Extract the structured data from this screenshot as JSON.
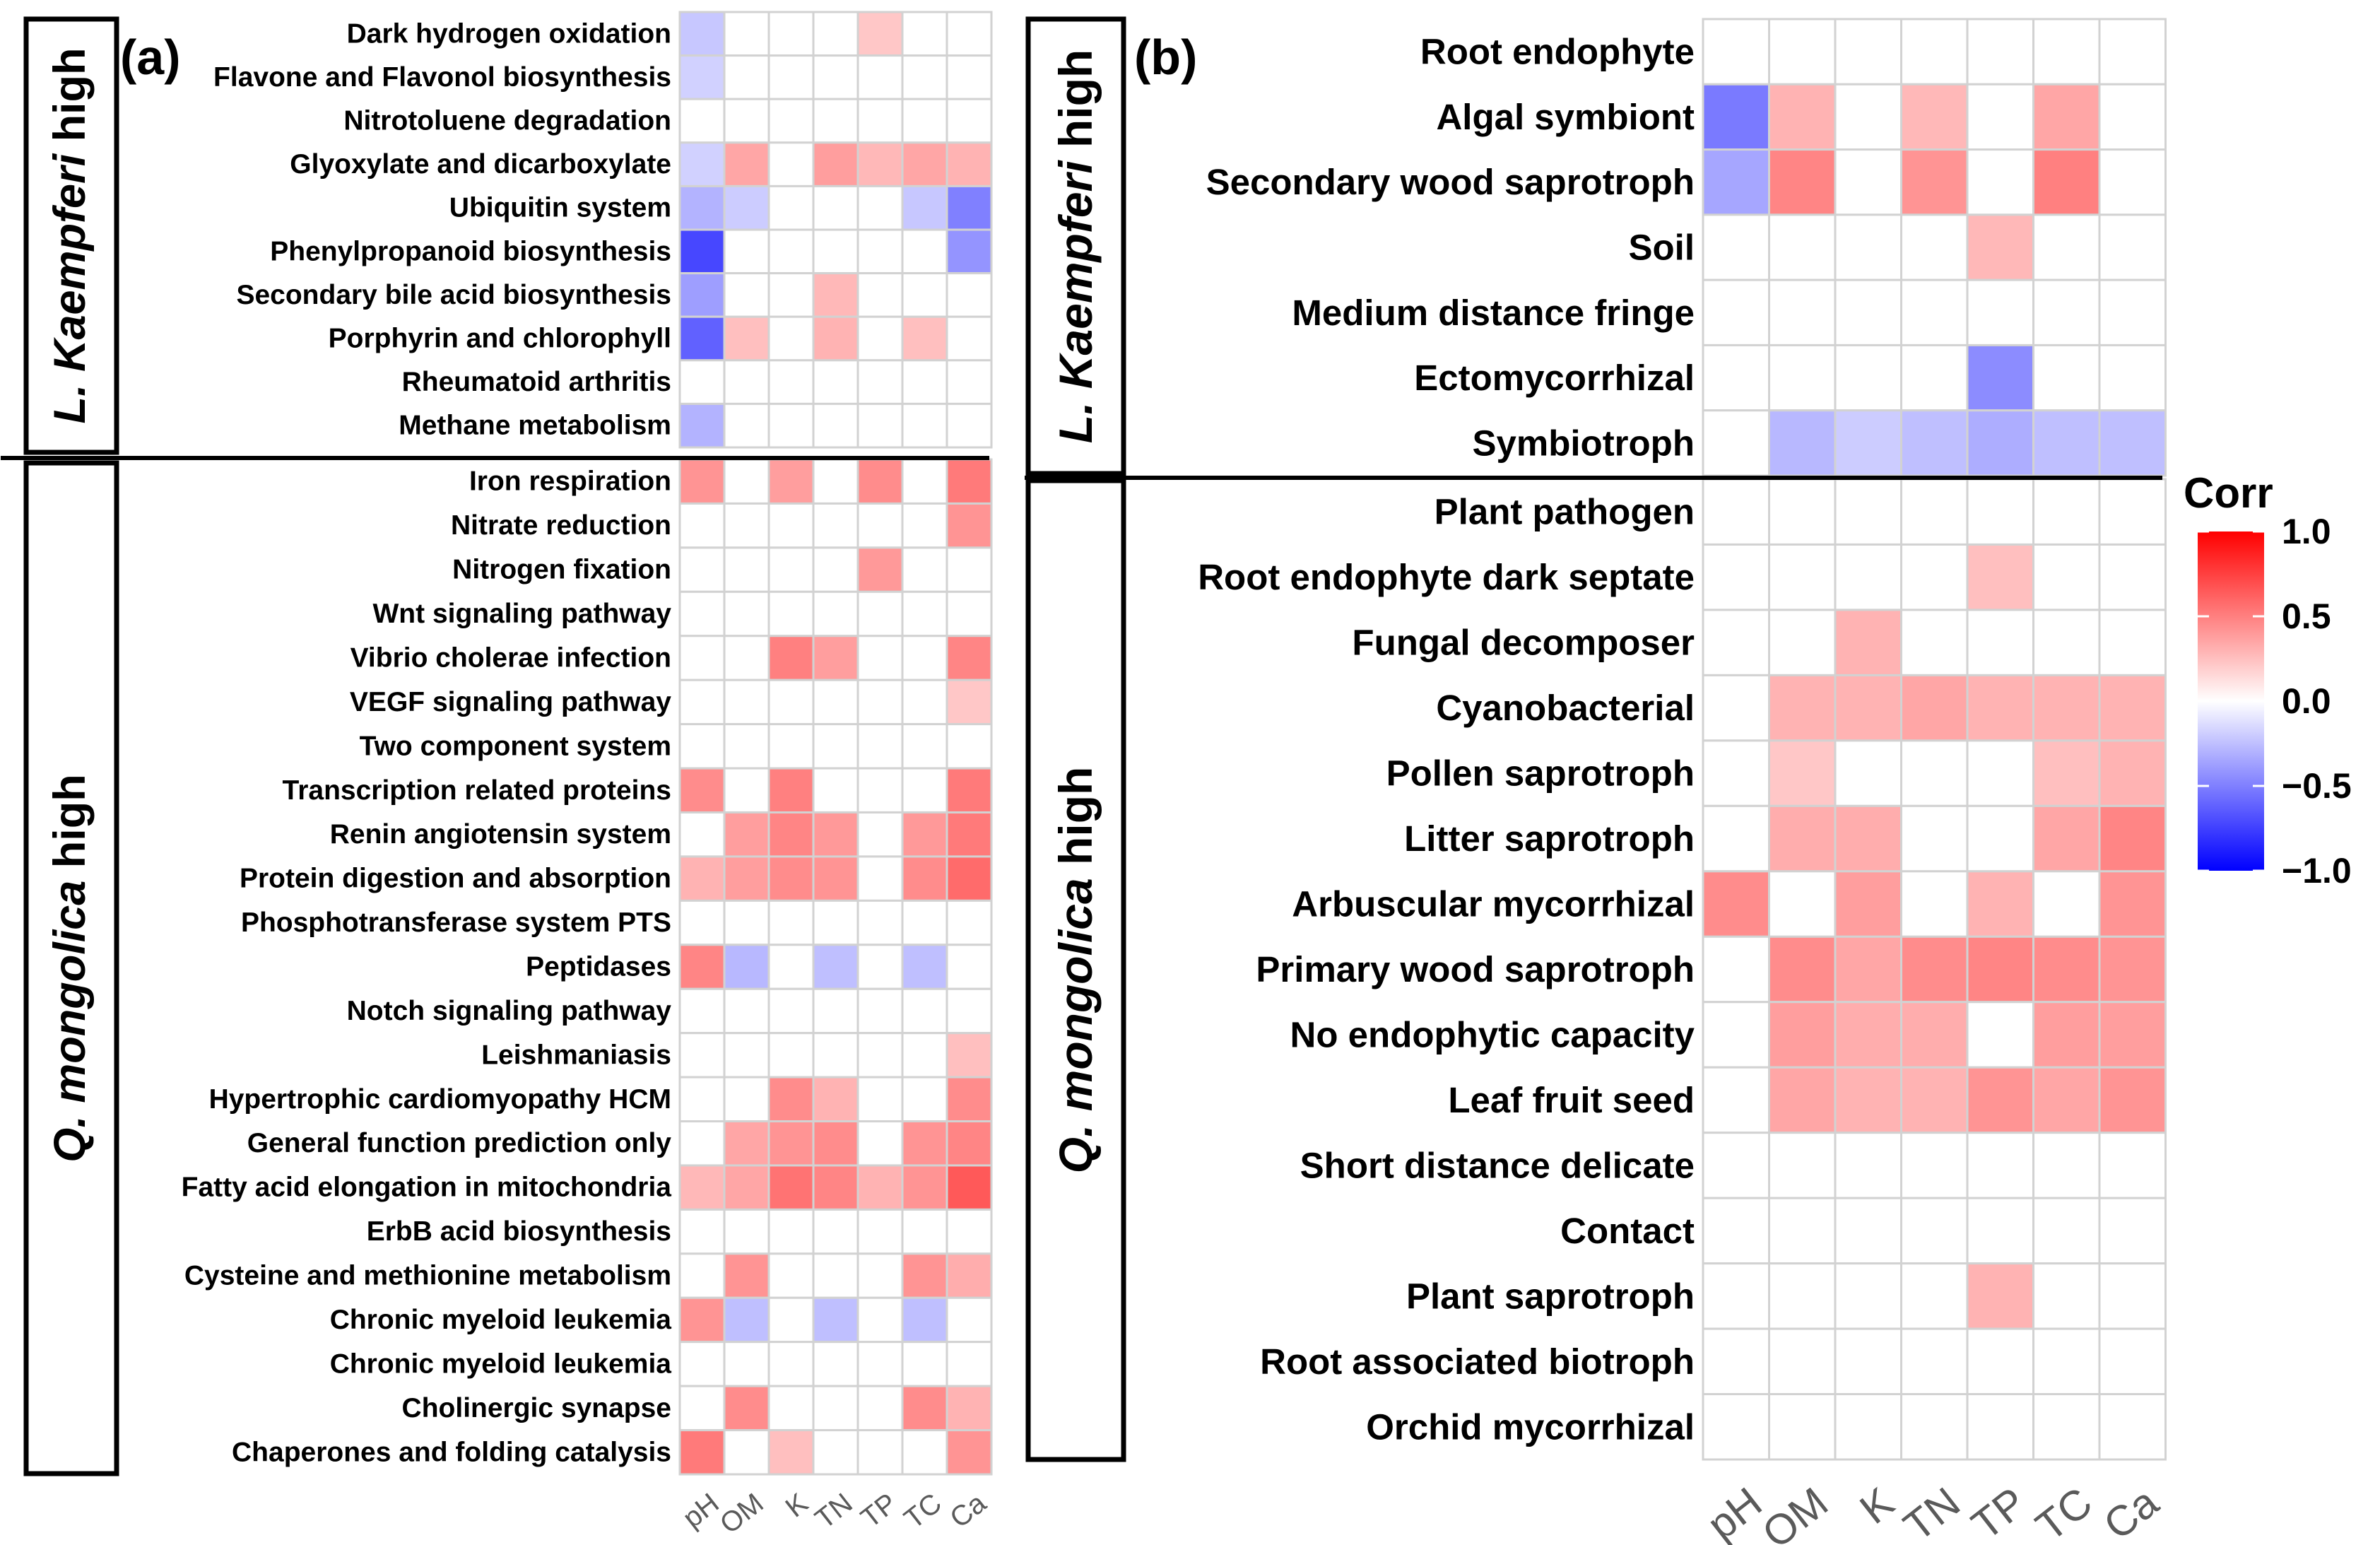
{
  "legend": {
    "title": "Corr",
    "ticks": [
      {
        "value": 1.0,
        "label": "1.0"
      },
      {
        "value": 0.5,
        "label": "0.5"
      },
      {
        "value": 0.0,
        "label": "0.0"
      },
      {
        "value": -0.5,
        "label": "−0.5"
      },
      {
        "value": -1.0,
        "label": "−1.0"
      }
    ],
    "colors": {
      "high": "#ff0000",
      "mid": "#ffffff",
      "low": "#0000ff",
      "grid": "#d2d2d2"
    }
  },
  "chart_data": [
    {
      "type": "heatmap",
      "panel": "(a)",
      "columns": [
        "pH",
        "OM",
        "K",
        "TN",
        "TP",
        "TC",
        "Ca"
      ],
      "groups": [
        {
          "label_species": "L. Kaempferi",
          "label_suffix": " high",
          "rows": [
            {
              "label": "Dark hydrogen oxidation",
              "values": [
                -0.22,
                0,
                0,
                0,
                0.22,
                0,
                0
              ]
            },
            {
              "label": "Flavone and Flavonol biosynthesis",
              "values": [
                -0.18,
                0,
                0,
                0,
                0,
                0,
                0
              ]
            },
            {
              "label": "Nitrotoluene degradation",
              "values": [
                0,
                0,
                0,
                0,
                0,
                0,
                0
              ]
            },
            {
              "label": "Glyoxylate and dicarboxylate",
              "values": [
                -0.18,
                0.35,
                0,
                0.38,
                0.28,
                0.35,
                0.3
              ]
            },
            {
              "label": "Ubiquitin system",
              "values": [
                -0.3,
                -0.2,
                0,
                0,
                0,
                -0.22,
                -0.5
              ]
            },
            {
              "label": "Phenylpropanoid biosynthesis",
              "values": [
                -0.72,
                0,
                0,
                0,
                0,
                0,
                -0.42
              ]
            },
            {
              "label": "Secondary bile acid biosynthesis",
              "values": [
                -0.38,
                0,
                0,
                0.28,
                0,
                0,
                0
              ]
            },
            {
              "label": "Porphyrin and chlorophyll",
              "values": [
                -0.62,
                0.25,
                0,
                0.3,
                0,
                0.25,
                0
              ]
            },
            {
              "label": "Rheumatoid arthritis",
              "values": [
                0,
                0,
                0,
                0,
                0,
                0,
                0
              ]
            },
            {
              "label": "Methane metabolism",
              "values": [
                -0.3,
                0,
                0,
                0,
                0,
                0,
                0
              ]
            }
          ]
        },
        {
          "label_species": "Q. mongolica",
          "label_suffix": " high",
          "rows": [
            {
              "label": "Iron respiration",
              "values": [
                0.42,
                0,
                0.38,
                0,
                0.45,
                0,
                0.52
              ]
            },
            {
              "label": "Nitrate reduction",
              "values": [
                0,
                0,
                0,
                0,
                0,
                0,
                0.42
              ]
            },
            {
              "label": "Nitrogen fixation",
              "values": [
                0,
                0,
                0,
                0,
                0.4,
                0,
                0
              ]
            },
            {
              "label": "Wnt signaling pathway",
              "values": [
                0,
                0,
                0,
                0,
                0,
                0,
                0
              ]
            },
            {
              "label": "Vibrio cholerae infection",
              "values": [
                0,
                0,
                0.5,
                0.38,
                0,
                0,
                0.48
              ]
            },
            {
              "label": "VEGF signaling pathway",
              "values": [
                0,
                0,
                0,
                0,
                0,
                0,
                0.22
              ]
            },
            {
              "label": "Two component system",
              "values": [
                0,
                0,
                0,
                0,
                0,
                0,
                0
              ]
            },
            {
              "label": "Transcription related proteins",
              "values": [
                0.45,
                0,
                0.5,
                0,
                0,
                0,
                0.52
              ]
            },
            {
              "label": "Renin angiotensin system",
              "values": [
                0,
                0.38,
                0.48,
                0.4,
                0,
                0.4,
                0.52
              ]
            },
            {
              "label": "Protein digestion and absorption",
              "values": [
                0.3,
                0.38,
                0.45,
                0.42,
                0,
                0.45,
                0.58
              ]
            },
            {
              "label": "Phosphotransferase system PTS",
              "values": [
                0,
                0,
                0,
                0,
                0,
                0,
                0
              ]
            },
            {
              "label": "Peptidases",
              "values": [
                0.48,
                -0.28,
                0,
                -0.25,
                0,
                -0.25,
                0
              ]
            },
            {
              "label": "Notch signaling pathway",
              "values": [
                0,
                0,
                0,
                0,
                0,
                0,
                0
              ]
            },
            {
              "label": "Leishmaniasis",
              "values": [
                0,
                0,
                0,
                0,
                0,
                0,
                0.25
              ]
            },
            {
              "label": "Hypertrophic cardiomyopathy HCM",
              "values": [
                0,
                0,
                0.45,
                0.3,
                0,
                0,
                0.45
              ]
            },
            {
              "label": "General function prediction only",
              "values": [
                0,
                0.35,
                0.42,
                0.45,
                0,
                0.42,
                0.48
              ]
            },
            {
              "label": "Fatty acid elongation in mitochondria",
              "values": [
                0.28,
                0.35,
                0.55,
                0.48,
                0.3,
                0.42,
                0.65
              ]
            },
            {
              "label": "ErbB acid biosynthesis",
              "values": [
                0,
                0,
                0,
                0,
                0,
                0,
                0
              ]
            },
            {
              "label": "Cysteine and methionine metabolism",
              "values": [
                0,
                0.42,
                0,
                0,
                0,
                0.42,
                0.32
              ]
            },
            {
              "label": "Chronic myeloid leukemia",
              "values": [
                0.42,
                -0.25,
                0,
                -0.25,
                0,
                -0.25,
                0
              ]
            },
            {
              "label": "Chronic myeloid leukemia",
              "values": [
                0,
                0,
                0,
                0,
                0,
                0,
                0
              ]
            },
            {
              "label": "Cholinergic synapse",
              "values": [
                0,
                0.45,
                0,
                0,
                0,
                0.45,
                0.3
              ]
            },
            {
              "label": "Chaperones and folding catalysis",
              "values": [
                0.52,
                0,
                0.25,
                0,
                0,
                0,
                0.42
              ]
            }
          ]
        }
      ]
    },
    {
      "type": "heatmap",
      "panel": "(b)",
      "columns": [
        "pH",
        "OM",
        "K",
        "TN",
        "TP",
        "TC",
        "Ca"
      ],
      "groups": [
        {
          "label_species": "L. Kaempferi",
          "label_suffix": " high",
          "rows": [
            {
              "label": "Root endophyte",
              "values": [
                0,
                0,
                0,
                0,
                0,
                0,
                0
              ]
            },
            {
              "label": "Algal symbiont",
              "values": [
                -0.52,
                0.3,
                0,
                0.28,
                0,
                0.35,
                0
              ]
            },
            {
              "label": "Secondary wood saprotroph",
              "values": [
                -0.35,
                0.48,
                0,
                0.42,
                0,
                0.5,
                0
              ]
            },
            {
              "label": "Soil",
              "values": [
                0,
                0,
                0,
                0,
                0.28,
                0,
                0
              ]
            },
            {
              "label": "Medium distance fringe",
              "values": [
                0,
                0,
                0,
                0,
                0,
                0,
                0
              ]
            },
            {
              "label": "Ectomycorrhizal",
              "values": [
                0,
                0,
                0,
                0,
                -0.45,
                0,
                0
              ]
            },
            {
              "label": "Symbiotroph",
              "values": [
                0,
                -0.28,
                -0.2,
                -0.25,
                -0.32,
                -0.25,
                -0.25
              ]
            }
          ]
        },
        {
          "label_species": "Q. mongolica",
          "label_suffix": " high",
          "rows": [
            {
              "label": "Plant pathogen",
              "values": [
                0,
                0,
                0,
                0,
                0,
                0,
                0
              ]
            },
            {
              "label": "Root endophyte dark septate",
              "values": [
                0,
                0,
                0,
                0,
                0.25,
                0,
                0
              ]
            },
            {
              "label": "Fungal decomposer",
              "values": [
                0,
                0,
                0.3,
                0,
                0,
                0,
                0
              ]
            },
            {
              "label": "Cyanobacterial",
              "values": [
                0,
                0.3,
                0.3,
                0.35,
                0.3,
                0.3,
                0.3
              ]
            },
            {
              "label": "Pollen saprotroph",
              "values": [
                0,
                0.22,
                0,
                0,
                0,
                0.25,
                0.3
              ]
            },
            {
              "label": "Litter saprotroph",
              "values": [
                0,
                0.32,
                0.32,
                0,
                0,
                0.35,
                0.48
              ]
            },
            {
              "label": "Arbuscular mycorrhizal",
              "values": [
                0.45,
                0,
                0.38,
                0,
                0.3,
                0,
                0.42
              ]
            },
            {
              "label": "Primary wood saprotroph",
              "values": [
                0,
                0.45,
                0.35,
                0.45,
                0.48,
                0.45,
                0.42
              ]
            },
            {
              "label": "No endophytic capacity",
              "values": [
                0,
                0.38,
                0.32,
                0.32,
                0,
                0.38,
                0.38
              ]
            },
            {
              "label": "Leaf fruit seed",
              "values": [
                0,
                0.35,
                0.3,
                0.3,
                0.42,
                0.35,
                0.42
              ]
            },
            {
              "label": "Short distance delicate",
              "values": [
                0,
                0,
                0,
                0,
                0,
                0,
                0
              ]
            },
            {
              "label": "Contact",
              "values": [
                0,
                0,
                0,
                0,
                0,
                0,
                0
              ]
            },
            {
              "label": "Plant saprotroph",
              "values": [
                0,
                0,
                0,
                0,
                0.3,
                0,
                0
              ]
            },
            {
              "label": "Root associated biotroph",
              "values": [
                0,
                0,
                0,
                0,
                0,
                0,
                0
              ]
            },
            {
              "label": "Orchid mycorrhizal",
              "values": [
                0,
                0,
                0,
                0,
                0,
                0,
                0
              ]
            }
          ]
        }
      ]
    }
  ]
}
